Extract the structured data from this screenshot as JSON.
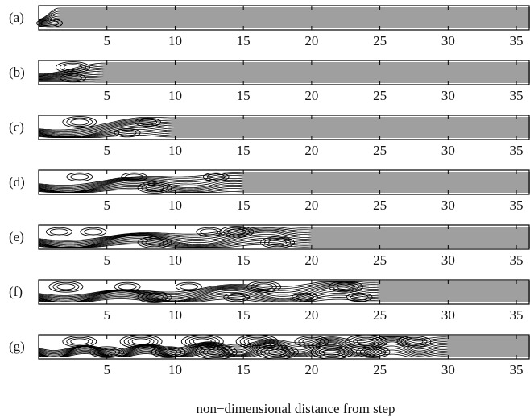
{
  "figure": {
    "panels": [
      {
        "label": "(a)",
        "reattach": 1.5,
        "waves": [],
        "vortices": [
          {
            "x": 0.8,
            "pos": "bottom",
            "n": 2
          }
        ]
      },
      {
        "label": "(b)",
        "reattach": 5.0,
        "waves": [],
        "vortices": [
          {
            "x": 2.5,
            "pos": "top",
            "n": 3
          },
          {
            "x": 2.5,
            "pos": "bottom",
            "n": 2
          }
        ]
      },
      {
        "label": "(c)",
        "reattach": 10.0,
        "waves": [
          {
            "start": 0,
            "end": 10,
            "amp": 0.22,
            "period": 10
          }
        ],
        "vortices": [
          {
            "x": 3.0,
            "pos": "top",
            "n": 3
          },
          {
            "x": 6.5,
            "pos": "bottom",
            "n": 2
          },
          {
            "x": 8.0,
            "pos": "top",
            "n": 2
          }
        ]
      },
      {
        "label": "(d)",
        "reattach": 15.0,
        "waves": [
          {
            "start": 0,
            "end": 15,
            "amp": 0.22,
            "period": 9
          }
        ],
        "vortices": [
          {
            "x": 3.0,
            "pos": "top",
            "n": 2
          },
          {
            "x": 7.0,
            "pos": "top",
            "n": 2
          },
          {
            "x": 8.5,
            "pos": "bottom",
            "n": 3
          },
          {
            "x": 13.0,
            "pos": "top",
            "n": 2
          }
        ]
      },
      {
        "label": "(e)",
        "reattach": 20.0,
        "waves": [
          {
            "start": 0,
            "end": 20,
            "amp": 0.25,
            "period": 9.5
          }
        ],
        "vortices": [
          {
            "x": 1.5,
            "pos": "top",
            "n": 2
          },
          {
            "x": 4.0,
            "pos": "top",
            "n": 2
          },
          {
            "x": 8.5,
            "pos": "bottom",
            "n": 3
          },
          {
            "x": 12.5,
            "pos": "top",
            "n": 2
          },
          {
            "x": 14.5,
            "pos": "top",
            "n": 3
          },
          {
            "x": 17.5,
            "pos": "bottom",
            "n": 3
          }
        ]
      },
      {
        "label": "(f)",
        "reattach": 25.0,
        "waves": [
          {
            "start": 0,
            "end": 25,
            "amp": 0.25,
            "period": 8
          }
        ],
        "vortices": [
          {
            "x": 2.0,
            "pos": "top",
            "n": 3
          },
          {
            "x": 6.5,
            "pos": "top",
            "n": 2
          },
          {
            "x": 8.5,
            "pos": "bottom",
            "n": 3
          },
          {
            "x": 11.0,
            "pos": "top",
            "n": 2
          },
          {
            "x": 14.5,
            "pos": "bottom",
            "n": 2
          },
          {
            "x": 16.5,
            "pos": "top",
            "n": 3
          },
          {
            "x": 19.5,
            "pos": "bottom",
            "n": 2
          },
          {
            "x": 22.5,
            "pos": "top",
            "n": 3
          },
          {
            "x": 23.5,
            "pos": "bottom",
            "n": 2
          }
        ]
      },
      {
        "label": "(g)",
        "reattach": 30.0,
        "waves": [
          {
            "start": 0,
            "end": 30,
            "amp": 0.25,
            "period": 4.5
          }
        ],
        "vortices": [
          {
            "x": 3.0,
            "pos": "top",
            "n": 3
          },
          {
            "x": 5.0,
            "pos": "bottom",
            "n": 3
          },
          {
            "x": 7.5,
            "pos": "top",
            "n": 4
          },
          {
            "x": 9.5,
            "pos": "bottom",
            "n": 3
          },
          {
            "x": 12.0,
            "pos": "top",
            "n": 4
          },
          {
            "x": 13.0,
            "pos": "bottom",
            "n": 4
          },
          {
            "x": 16.0,
            "pos": "top",
            "n": 4
          },
          {
            "x": 17.5,
            "pos": "bottom",
            "n": 4
          },
          {
            "x": 20.0,
            "pos": "top",
            "n": 3
          },
          {
            "x": 21.5,
            "pos": "bottom",
            "n": 4
          },
          {
            "x": 24.0,
            "pos": "top",
            "n": 4
          },
          {
            "x": 24.5,
            "pos": "bottom",
            "n": 3
          },
          {
            "x": 27.5,
            "pos": "top",
            "n": 3
          }
        ]
      }
    ],
    "x_ticks": [
      5,
      10,
      15,
      20,
      25,
      30,
      35
    ],
    "x_range": [
      0,
      36
    ],
    "x_title": "non−dimensional distance from step"
  }
}
